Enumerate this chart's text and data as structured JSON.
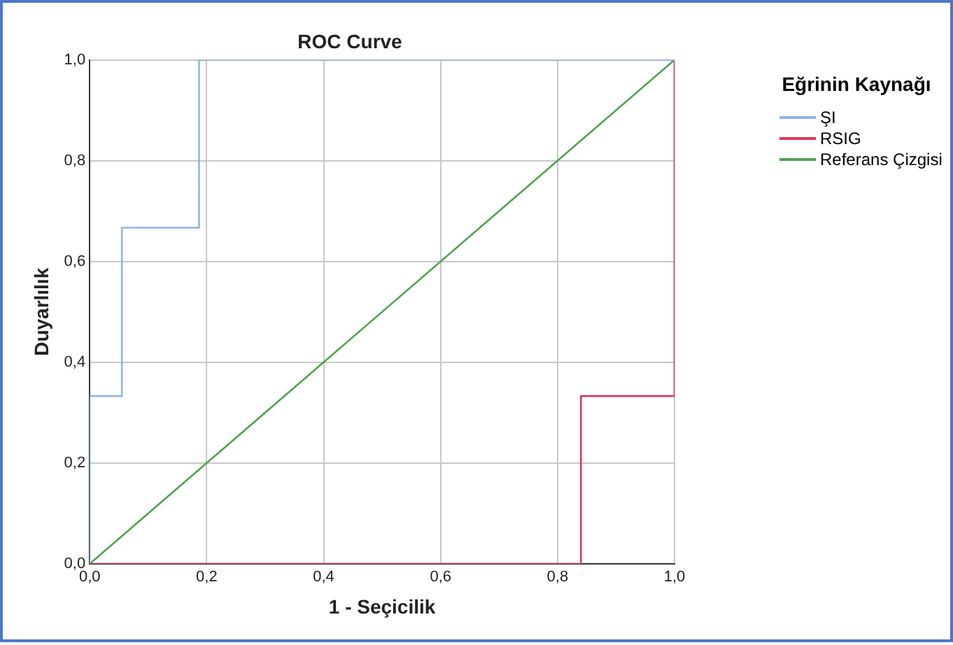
{
  "chart_data": {
    "type": "line",
    "title": "ROC Curve",
    "xlabel": "1 - Seçicilik",
    "ylabel": "Duyarlılık",
    "legend_title": "Eğrinin Kaynağı",
    "series": [
      {
        "name": "ŞI",
        "color": "#8fb4e8",
        "x": [
          0,
          0,
          0.055,
          0.055,
          0.187,
          0.187,
          1
        ],
        "values": [
          0,
          0.333,
          0.333,
          0.667,
          0.667,
          1,
          1
        ]
      },
      {
        "name": "RSIG",
        "color": "#e0365e",
        "x": [
          0,
          0.84,
          0.84,
          1,
          1,
          1
        ],
        "values": [
          0,
          0,
          0.333,
          0.333,
          0.667,
          1
        ]
      },
      {
        "name": "Referans Çizgisi",
        "color": "#4fa24f",
        "x": [
          0,
          1
        ],
        "values": [
          0,
          1
        ]
      }
    ],
    "xlim": [
      0,
      1
    ],
    "ylim": [
      0,
      1
    ],
    "xticks": [
      {
        "value": 0,
        "label": "0,0"
      },
      {
        "value": 0.2,
        "label": "0,2"
      },
      {
        "value": 0.4,
        "label": "0,4"
      },
      {
        "value": 0.6,
        "label": "0,6"
      },
      {
        "value": 0.8,
        "label": "0,8"
      },
      {
        "value": 1,
        "label": "1,0"
      }
    ],
    "yticks": [
      {
        "value": 0,
        "label": "0,0"
      },
      {
        "value": 0.2,
        "label": "0,2"
      },
      {
        "value": 0.4,
        "label": "0,4"
      },
      {
        "value": 0.6,
        "label": "0,6"
      },
      {
        "value": 0.8,
        "label": "0,8"
      },
      {
        "value": 1,
        "label": "1,0"
      }
    ],
    "grid": true,
    "legend": "right",
    "marker": "none",
    "line_style": "solid"
  }
}
